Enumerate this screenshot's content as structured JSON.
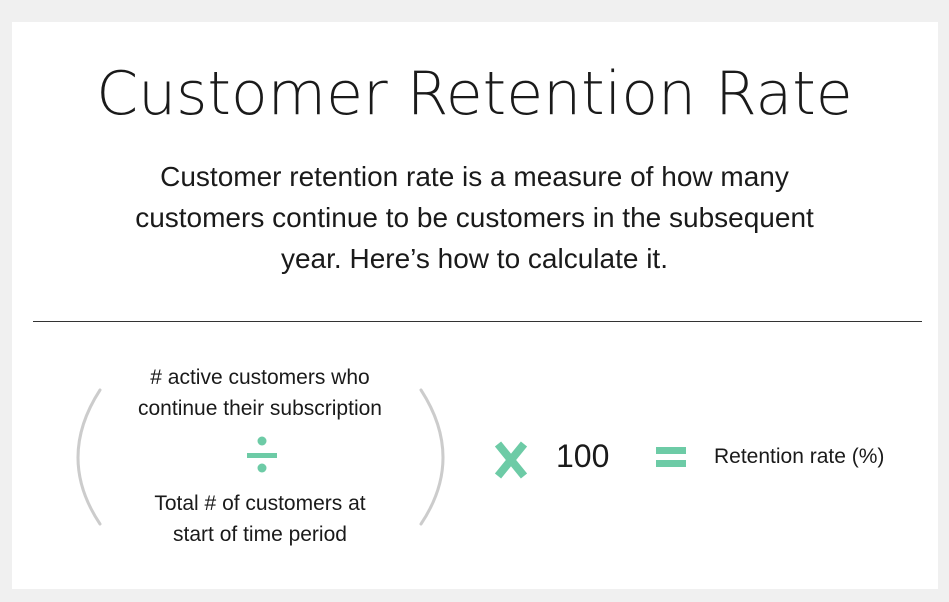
{
  "title": "Customer Retention Rate",
  "description": {
    "lines": [
      "Customer retention rate is a measure of how many",
      "customers continue to be customers in the subsequent",
      "year. Here’s how to calculate it."
    ]
  },
  "formula": {
    "numerator_lines": [
      "# active customers who",
      "continue their subscription"
    ],
    "denominator_lines": [
      "Total # of customers at",
      "start of time period"
    ],
    "multiplier": "100",
    "result_label": "Retention rate (%)",
    "operators": {
      "divide": "divide-icon",
      "multiply": "multiply-icon",
      "equals": "equals-icon"
    }
  },
  "colors": {
    "accent": "#6dcba6",
    "paren": "#cccccc",
    "text": "#1a1a1a"
  }
}
